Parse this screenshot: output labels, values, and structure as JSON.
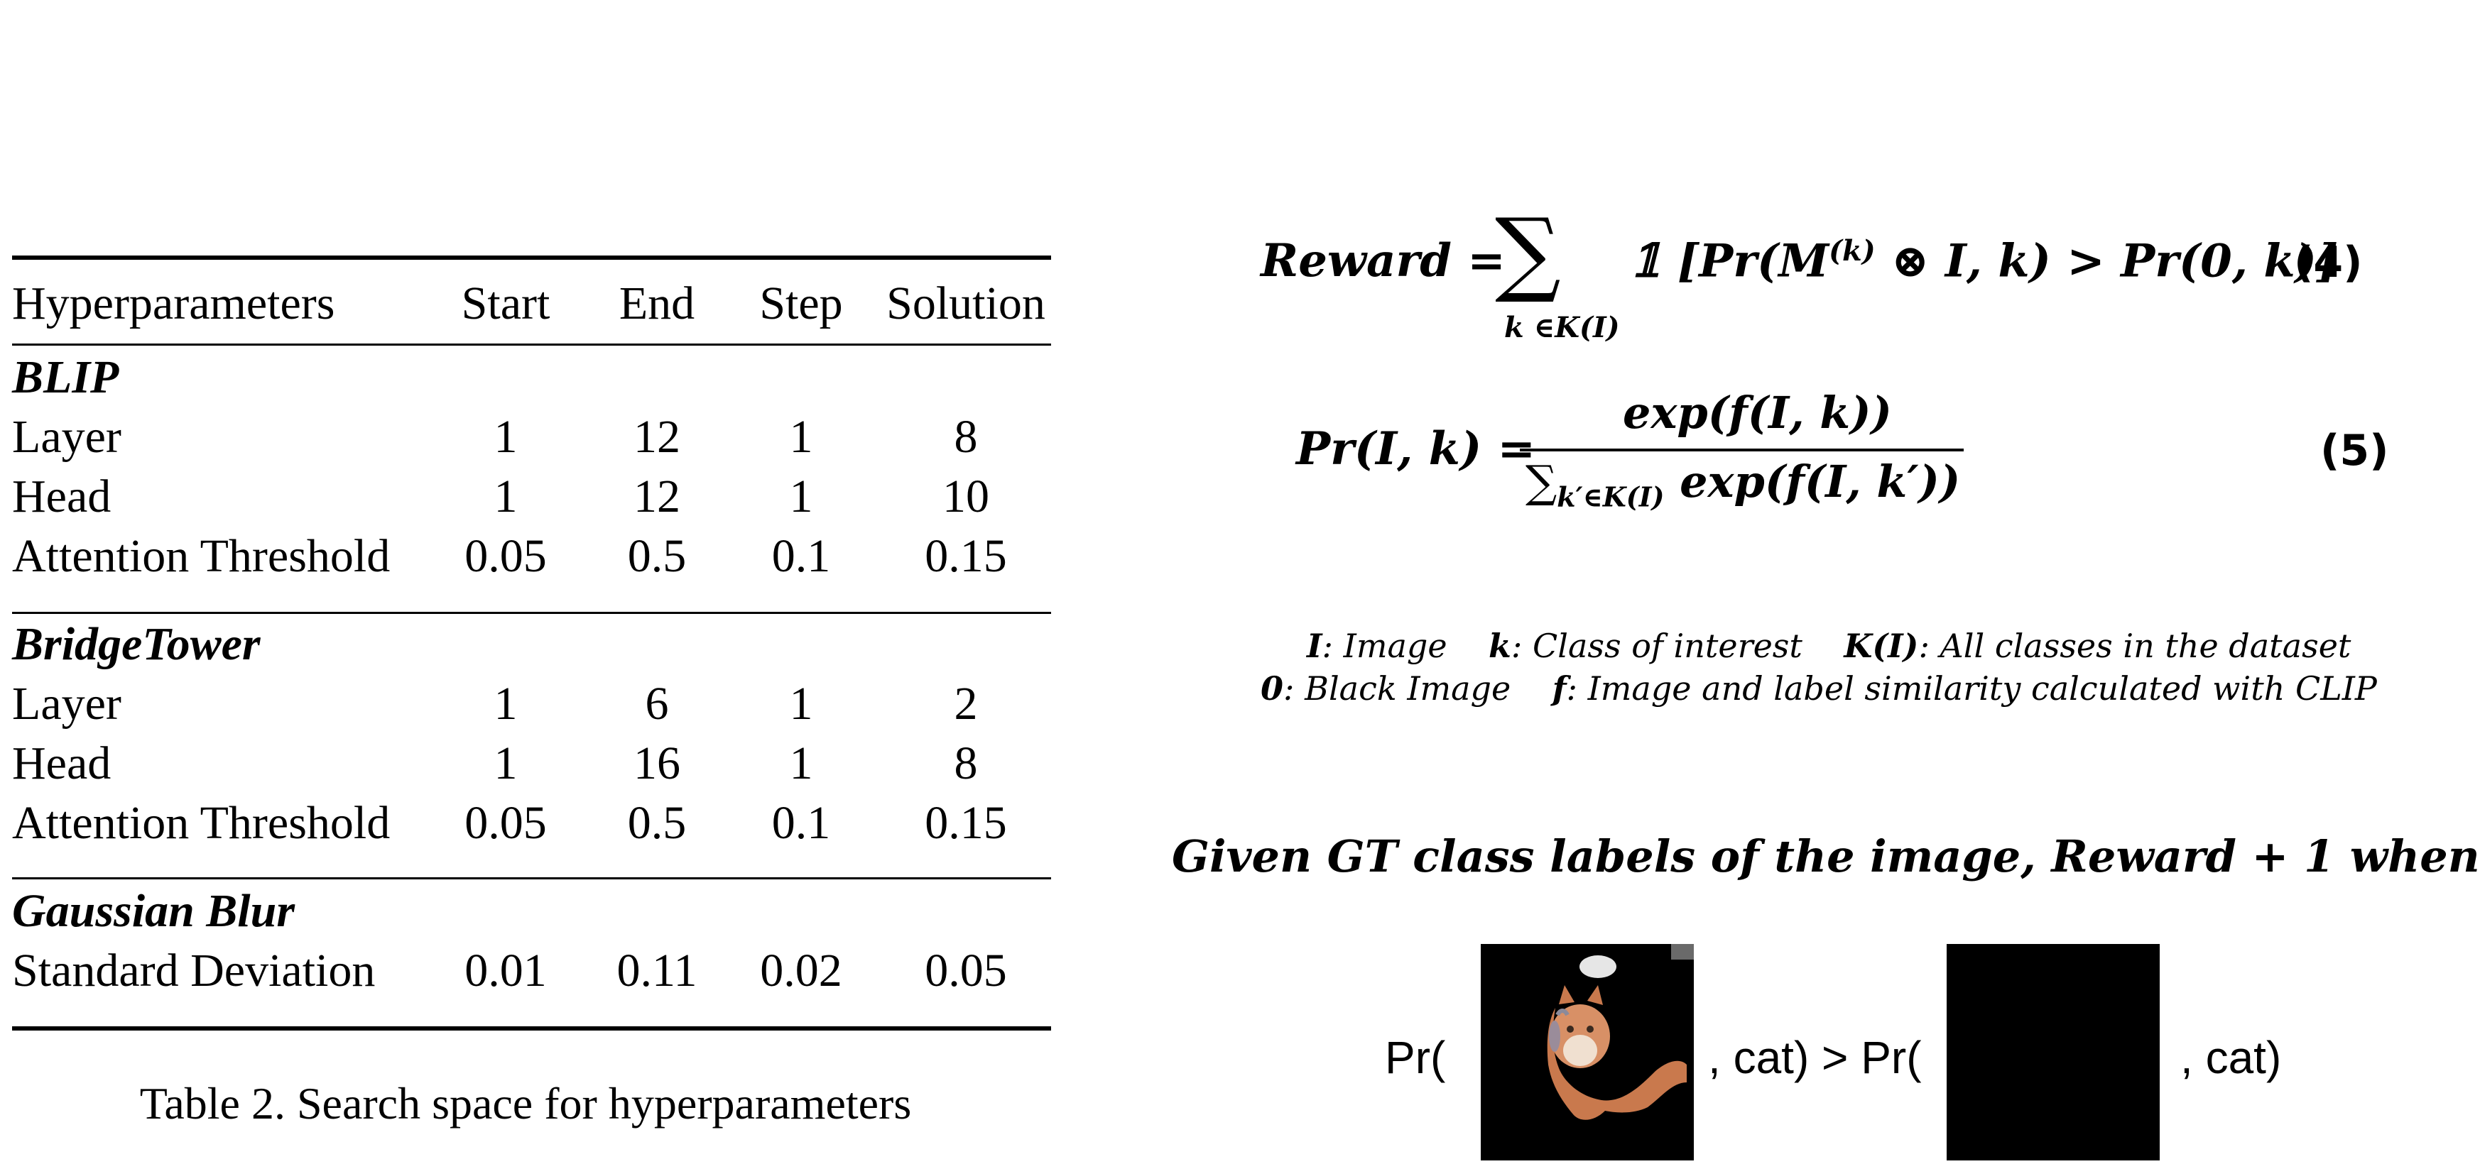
{
  "table": {
    "header": [
      "Hyperparameters",
      "Start",
      "End",
      "Step",
      "Solution"
    ],
    "groups": [
      {
        "title": "BLIP",
        "rows": [
          [
            "Layer",
            "1",
            "12",
            "1",
            "8"
          ],
          [
            "Head",
            "1",
            "12",
            "1",
            "10"
          ],
          [
            "Attention Threshold",
            "0.05",
            "0.5",
            "0.1",
            "0.15"
          ]
        ]
      },
      {
        "title": "BridgeTower",
        "rows": [
          [
            "Layer",
            "1",
            "6",
            "1",
            "2"
          ],
          [
            "Head",
            "1",
            "16",
            "1",
            "8"
          ],
          [
            "Attention Threshold",
            "0.05",
            "0.5",
            "0.1",
            "0.15"
          ]
        ]
      },
      {
        "title": "Gaussian Blur",
        "rows": [
          [
            "Standard Deviation",
            "0.01",
            "0.11",
            "0.02",
            "0.05"
          ]
        ]
      }
    ],
    "caption": "Table 2. Search space for hyperparameters"
  },
  "equations": {
    "reward": {
      "lhs": "Reward =",
      "sum_subscript": "k ∈K(I)",
      "body": "𝟙 [Pr(M",
      "sup": "(k)",
      "body_rest": " ⊗ I, k) > Pr(0, k)]",
      "number": "(4)"
    },
    "prob": {
      "lhs": "Pr(I, k) =",
      "numerator": "exp(f(I, k))",
      "denominator_sum": "∑",
      "denominator_sub": "k′∈K(I)",
      "denominator_rest": " exp(f(I, k′))",
      "number": "(5)"
    }
  },
  "legend": {
    "line1": [
      {
        "sym": "I",
        "desc": ": Image"
      },
      {
        "sym": "k",
        "desc": ": Class of interest"
      },
      {
        "sym": "K(I)",
        "desc": ": All classes in the dataset"
      }
    ],
    "line2": [
      {
        "sym": "0",
        "desc": ": Black Image"
      },
      {
        "sym": "f",
        "desc": ": Image and label similarity calculated with CLIP"
      }
    ]
  },
  "given_line": "Given GT class labels of the image, Reward + 1 when",
  "comparison": {
    "pr_open_1": "Pr(",
    "middle": ", cat) > Pr(",
    "end": ", cat)",
    "masked_image_icon": "masked-cat-image",
    "black_image_icon": "black-image"
  }
}
